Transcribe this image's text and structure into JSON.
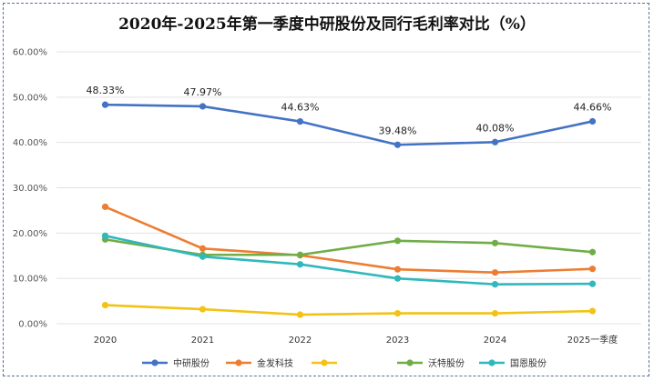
{
  "chart_data": {
    "type": "line",
    "title": "2020年-2025年第一季度中研股份及同行毛利率对比（%）",
    "categories": [
      "2020",
      "2021",
      "2022",
      "2023",
      "2024",
      "2025一季度"
    ],
    "y_ticks": [
      "0.00%",
      "10.00%",
      "20.00%",
      "30.00%",
      "40.00%",
      "50.00%",
      "60.00%"
    ],
    "ylim": [
      0,
      60
    ],
    "grid": true,
    "legend_position": "bottom",
    "series": [
      {
        "name": "中研股份",
        "color": "#4472c4",
        "values": [
          48.33,
          47.97,
          44.63,
          39.48,
          40.08,
          44.66
        ],
        "labels": [
          "48.33%",
          "47.97%",
          "44.63%",
          "39.48%",
          "40.08%",
          "44.66%"
        ]
      },
      {
        "name": "金发科技",
        "color": "#ed7d31",
        "values": [
          25.8,
          16.6,
          15.1,
          12.0,
          11.3,
          12.1
        ]
      },
      {
        "name": "",
        "color": "#f2c314",
        "values": [
          4.1,
          3.2,
          2.0,
          2.3,
          2.3,
          2.8
        ]
      },
      {
        "name": "沃特股份",
        "color": "#70ad47",
        "values": [
          18.6,
          15.2,
          15.2,
          18.3,
          17.8,
          15.8
        ]
      },
      {
        "name": "国恩股份",
        "color": "#2fb8bd",
        "values": [
          19.4,
          14.8,
          13.1,
          10.0,
          8.7,
          8.8
        ]
      }
    ]
  }
}
